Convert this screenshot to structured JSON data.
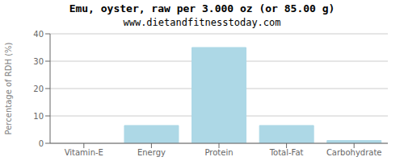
{
  "chart_data": {
    "type": "bar",
    "title": "Emu, oyster, raw per 3.000 oz (or 85.00 g)",
    "subtitle": "www.dietandfitnesstoday.com",
    "categories": [
      "Vitamin-E",
      "Energy",
      "Protein",
      "Total-Fat",
      "Carbohydrate"
    ],
    "values": [
      0.0,
      6.5,
      35.0,
      6.5,
      1.0
    ],
    "color": "#add8e6",
    "ylabel": "Percentage of RDH (%)",
    "ylim": [
      0,
      40
    ],
    "yticks": [
      0,
      10,
      20,
      30,
      40
    ],
    "grid": true
  }
}
